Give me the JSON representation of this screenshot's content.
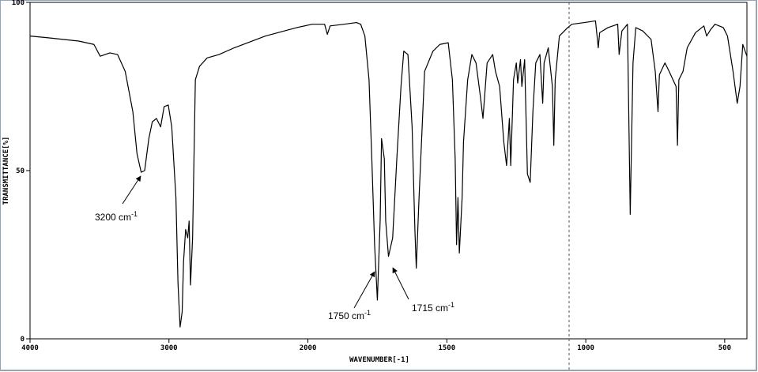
{
  "chart_data": {
    "type": "line",
    "xlabel": "WAVENUMBER[-1]",
    "ylabel": "TRANSMITTANCE[%]",
    "color": "#000000",
    "xlim": [
      4000,
      420
    ],
    "xticks": [
      4000,
      3000,
      2000,
      1500,
      1000,
      500
    ],
    "ylim": [
      0,
      100
    ],
    "yticks": [
      0,
      50,
      100
    ],
    "x": [
      4000,
      3875,
      3650,
      3540,
      3495,
      3425,
      3370,
      3315,
      3260,
      3230,
      3200,
      3175,
      3145,
      3120,
      3090,
      3060,
      3035,
      3005,
      2980,
      2950,
      2935,
      2920,
      2905,
      2895,
      2880,
      2865,
      2855,
      2845,
      2830,
      2810,
      2780,
      2725,
      2640,
      2530,
      2305,
      2080,
      1985,
      1940,
      1930,
      1920,
      1870,
      1825,
      1810,
      1795,
      1780,
      1770,
      1760,
      1750,
      1740,
      1735,
      1725,
      1720,
      1710,
      1695,
      1680,
      1665,
      1655,
      1640,
      1625,
      1615,
      1610,
      1600,
      1580,
      1550,
      1525,
      1495,
      1480,
      1470,
      1465,
      1460,
      1455,
      1445,
      1440,
      1425,
      1410,
      1395,
      1380,
      1370,
      1355,
      1335,
      1325,
      1310,
      1295,
      1285,
      1275,
      1270,
      1260,
      1250,
      1245,
      1235,
      1230,
      1220,
      1210,
      1200,
      1190,
      1180,
      1165,
      1155,
      1150,
      1135,
      1120,
      1115,
      1110,
      1095,
      1065,
      1050,
      1005,
      965,
      955,
      950,
      920,
      885,
      880,
      870,
      850,
      840,
      830,
      820,
      795,
      765,
      750,
      740,
      735,
      715,
      700,
      675,
      670,
      665,
      650,
      635,
      605,
      575,
      565,
      550,
      535,
      505,
      490,
      470,
      455,
      445,
      435,
      420
    ],
    "values": [
      90,
      89.5,
      88.5,
      87.5,
      84,
      85,
      84.5,
      79.5,
      67.5,
      55,
      49.5,
      50,
      59.5,
      64.5,
      65.5,
      63,
      69,
      69.5,
      63,
      42,
      16.5,
      3.5,
      8,
      23,
      32.5,
      30,
      35,
      16,
      30,
      77,
      81,
      83.5,
      84.5,
      86.5,
      90,
      92.5,
      93.5,
      93.5,
      90.5,
      93,
      93.5,
      94,
      93.5,
      90,
      77,
      53.5,
      28,
      11.5,
      35,
      59.5,
      53.5,
      35,
      24.5,
      30,
      53.5,
      75,
      85.5,
      84.5,
      63,
      32.5,
      21,
      42,
      79.5,
      85.5,
      87.5,
      88,
      77,
      53.5,
      28,
      42,
      25.5,
      42,
      58.5,
      77,
      84.5,
      82,
      72.5,
      65.5,
      82,
      84.5,
      79.5,
      75,
      58.5,
      51.5,
      65.5,
      51.5,
      77,
      82,
      76,
      83,
      75,
      83,
      49,
      46.5,
      68,
      82,
      84.5,
      70,
      82,
      86.5,
      75,
      57.5,
      77,
      90,
      92.5,
      93.5,
      94,
      94.5,
      86.5,
      91,
      92.5,
      93.5,
      84.5,
      91.5,
      93.5,
      37,
      82,
      92.5,
      91.5,
      89,
      79.5,
      67.5,
      78.5,
      82,
      79.5,
      75,
      57.5,
      77,
      79.5,
      86.5,
      91,
      93,
      90,
      92,
      93.5,
      92.5,
      90,
      79.5,
      70,
      75,
      87.5,
      84
    ],
    "annotations": [
      {
        "text": "3200 cm",
        "sup": "-1"
      },
      {
        "text": "1750 cm",
        "sup": "-1"
      },
      {
        "text": "1715 cm",
        "sup": "-1"
      }
    ]
  }
}
